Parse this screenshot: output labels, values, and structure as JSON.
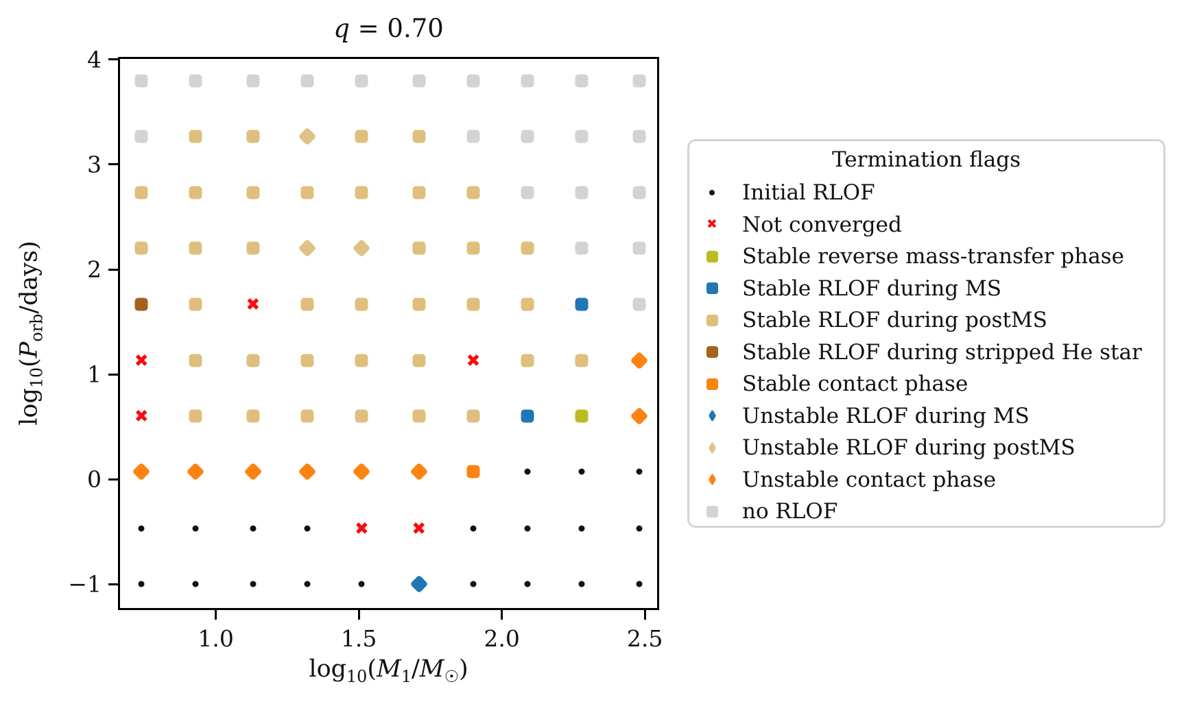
{
  "title": {
    "variable": "q",
    "rest": " = 0.70"
  },
  "axes": {
    "xlabel": {
      "log": "log",
      "logsub": "10",
      "open": "(",
      "var": "M",
      "varsub": "1",
      "slash": "/",
      "var2": "M",
      "var2sub": "☉",
      "close": ")"
    },
    "ylabel": {
      "log": "log",
      "logsub": "10",
      "open": "(",
      "var": "P",
      "varsub": "orb",
      "rest": "/days)"
    },
    "x_ticks": [
      {
        "v": 1.0,
        "label": "1.0"
      },
      {
        "v": 1.5,
        "label": "1.5"
      },
      {
        "v": 2.0,
        "label": "2.0"
      },
      {
        "v": 2.5,
        "label": "2.5"
      }
    ],
    "y_ticks": [
      {
        "v": 4,
        "label": "4"
      },
      {
        "v": 3,
        "label": "3"
      },
      {
        "v": 2,
        "label": "2"
      },
      {
        "v": 1,
        "label": "1"
      },
      {
        "v": 0,
        "label": "0"
      },
      {
        "v": -1,
        "label": "−1"
      }
    ]
  },
  "legend": {
    "title": "Termination flags",
    "entries": [
      {
        "flag": "initial_rlof",
        "label": "Initial RLOF"
      },
      {
        "flag": "not_converged",
        "label": "Not converged"
      },
      {
        "flag": "stable_reverse",
        "label": "Stable reverse mass-transfer phase"
      },
      {
        "flag": "stable_ms",
        "label": "Stable RLOF during MS"
      },
      {
        "flag": "stable_postms",
        "label": "Stable RLOF during postMS"
      },
      {
        "flag": "stable_he",
        "label": "Stable RLOF during stripped He star"
      },
      {
        "flag": "stable_contact",
        "label": "Stable contact phase"
      },
      {
        "flag": "unstable_ms",
        "label": "Unstable RLOF during MS"
      },
      {
        "flag": "unstable_postms",
        "label": "Unstable RLOF during postMS"
      },
      {
        "flag": "unstable_contact",
        "label": "Unstable contact phase"
      },
      {
        "flag": "no_rlof",
        "label": "no RLOF"
      }
    ]
  },
  "chart_data": {
    "type": "scatter",
    "title": "q = 0.70",
    "xlabel": "log10(M1/Msun)",
    "ylabel": "log10(Porb/days)",
    "xlim": [
      0.658,
      2.55
    ],
    "ylim": [
      -1.248,
      4.026
    ],
    "grid": "off",
    "legend_position": "right",
    "x_values": [
      0.74,
      0.93,
      1.13,
      1.32,
      1.51,
      1.71,
      1.9,
      2.09,
      2.28,
      2.48
    ],
    "y_values": [
      3.8,
      3.27,
      2.73,
      2.2,
      1.67,
      1.13,
      0.6,
      0.07,
      -0.47,
      -1.0
    ],
    "grid_flags": [
      [
        "no_rlof",
        "no_rlof",
        "no_rlof",
        "no_rlof",
        "no_rlof",
        "no_rlof",
        "no_rlof",
        "no_rlof",
        "no_rlof",
        "no_rlof"
      ],
      [
        "no_rlof",
        "stable_postms",
        "stable_postms",
        "unstable_postms",
        "stable_postms",
        "stable_postms",
        "no_rlof",
        "no_rlof",
        "no_rlof",
        "no_rlof"
      ],
      [
        "stable_postms",
        "stable_postms",
        "stable_postms",
        "stable_postms",
        "stable_postms",
        "stable_postms",
        "stable_postms",
        "no_rlof",
        "no_rlof",
        "no_rlof"
      ],
      [
        "stable_postms",
        "stable_postms",
        "stable_postms",
        "unstable_postms",
        "unstable_postms",
        "stable_postms",
        "stable_postms",
        "stable_postms",
        "no_rlof",
        "no_rlof"
      ],
      [
        "stable_he",
        "stable_postms",
        "not_converged",
        "stable_postms",
        "stable_postms",
        "stable_postms",
        "stable_postms",
        "stable_postms",
        "stable_ms",
        "no_rlof"
      ],
      [
        "not_converged",
        "stable_postms",
        "stable_postms",
        "stable_postms",
        "stable_postms",
        "stable_postms",
        "not_converged",
        "stable_postms",
        "stable_postms",
        "unstable_contact"
      ],
      [
        "not_converged",
        "stable_postms",
        "stable_postms",
        "stable_postms",
        "stable_postms",
        "stable_postms",
        "stable_postms",
        "stable_ms",
        "stable_reverse",
        "unstable_contact"
      ],
      [
        "unstable_contact",
        "unstable_contact",
        "unstable_contact",
        "unstable_contact",
        "unstable_contact",
        "unstable_contact",
        "stable_contact",
        "initial_rlof",
        "initial_rlof",
        "initial_rlof"
      ],
      [
        "initial_rlof",
        "initial_rlof",
        "initial_rlof",
        "initial_rlof",
        "not_converged",
        "not_converged",
        "initial_rlof",
        "initial_rlof",
        "initial_rlof",
        "initial_rlof"
      ],
      [
        "initial_rlof",
        "initial_rlof",
        "initial_rlof",
        "initial_rlof",
        "initial_rlof",
        "unstable_ms",
        "initial_rlof",
        "initial_rlof",
        "initial_rlof",
        "initial_rlof"
      ]
    ],
    "markers": {
      "initial_rlof": {
        "shape": "dot",
        "color": "#111111"
      },
      "not_converged": {
        "shape": "xmark",
        "color": "#f80d0c",
        "glyph": "✖"
      },
      "stable_reverse": {
        "shape": "square",
        "color": "#b9bd22"
      },
      "stable_ms": {
        "shape": "square",
        "color": "#2077b4"
      },
      "stable_postms": {
        "shape": "square",
        "color": "#debf7d"
      },
      "stable_he": {
        "shape": "square",
        "color": "#a5621d"
      },
      "stable_contact": {
        "shape": "square",
        "color": "#fd8311"
      },
      "unstable_ms": {
        "shape": "diamond",
        "color": "#2077b4"
      },
      "unstable_postms": {
        "shape": "diamond",
        "color": "#dfc386"
      },
      "unstable_contact": {
        "shape": "diamond",
        "color": "#fd8311"
      },
      "no_rlof": {
        "shape": "square",
        "color": "#d3d3d3"
      }
    }
  }
}
